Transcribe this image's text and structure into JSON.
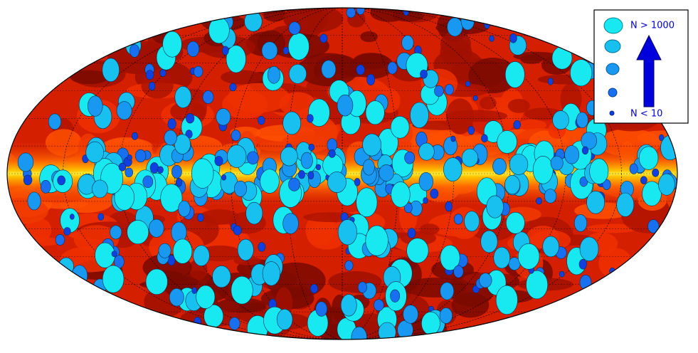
{
  "legend": {
    "top_label": "N > 1000",
    "bottom_label": "N < 10"
  }
}
